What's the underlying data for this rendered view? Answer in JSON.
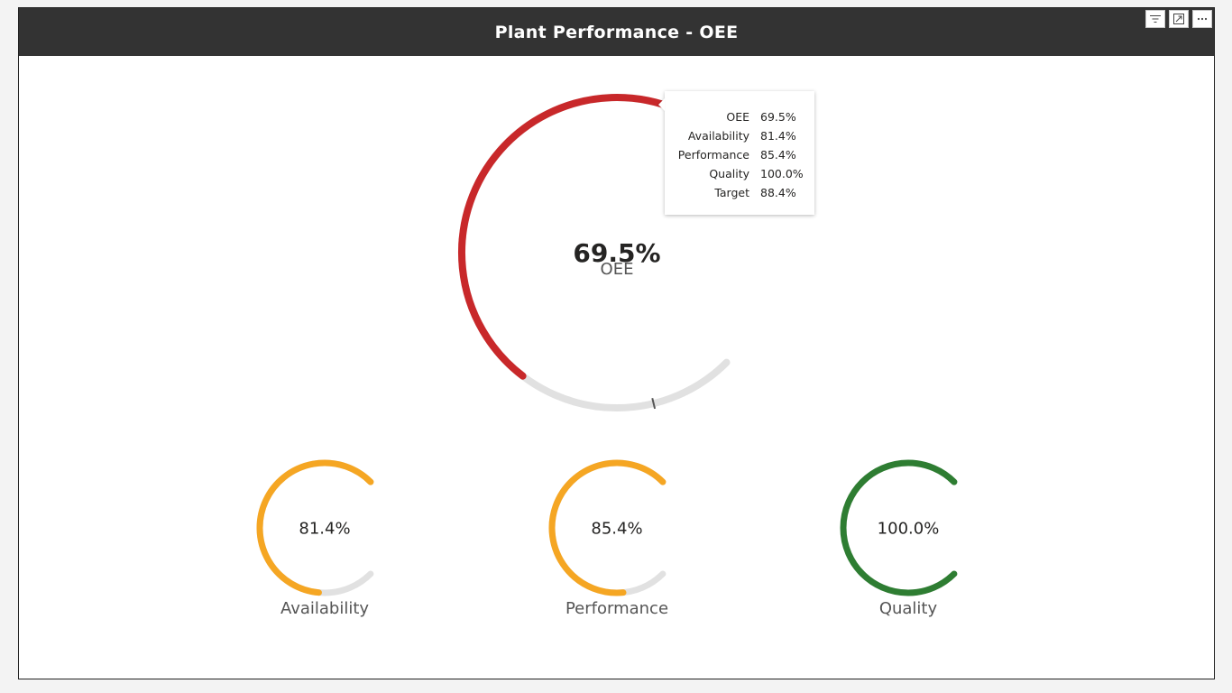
{
  "visual": {
    "title": "Plant Performance - OEE",
    "header_icons": [
      "filter-icon",
      "focus-mode-icon",
      "more-options-icon"
    ]
  },
  "colors": {
    "track": "#e1e1e1",
    "oee": "#c8282a",
    "availability": "#f5a623",
    "performance": "#f5a623",
    "quality": "#2e7d32",
    "target_marker": "#555555"
  },
  "chart_data": [
    {
      "type": "gauge",
      "name": "OEE",
      "value": 69.5,
      "value_label": "69.5%",
      "label": "OEE",
      "target": 88.4,
      "min": 0,
      "max": 100
    },
    {
      "type": "gauge",
      "name": "Availability",
      "value": 81.4,
      "value_label": "81.4%",
      "label": "Availability",
      "min": 0,
      "max": 100
    },
    {
      "type": "gauge",
      "name": "Performance",
      "value": 85.4,
      "value_label": "85.4%",
      "label": "Performance",
      "min": 0,
      "max": 100
    },
    {
      "type": "gauge",
      "name": "Quality",
      "value": 100.0,
      "value_label": "100.0%",
      "label": "Quality",
      "min": 0,
      "max": 100
    }
  ],
  "tooltip": {
    "rows": [
      {
        "label": "OEE",
        "value": "69.5%"
      },
      {
        "label": "Availability",
        "value": "81.4%"
      },
      {
        "label": "Performance",
        "value": "85.4%"
      },
      {
        "label": "Quality",
        "value": "100.0%"
      },
      {
        "label": "Target",
        "value": "88.4%"
      }
    ]
  }
}
